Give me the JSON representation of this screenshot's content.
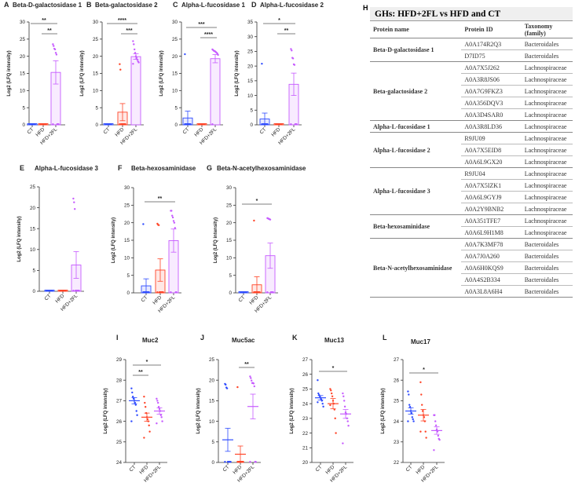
{
  "colors": {
    "CT": "#2f4cff",
    "HFD": "#ff4427",
    "HFD+2FL": "#c65bff"
  },
  "y_axis_label": "Log2 (LFQ intensity)",
  "chart_data": [
    {
      "letter": "A",
      "title": "Beta-D-galactosidase 1",
      "type": "bar",
      "categories": [
        "CT",
        "HFD",
        "HFD+2FL"
      ],
      "ylim": [
        0,
        30
      ],
      "yticks": [
        0,
        5,
        10,
        15,
        20,
        25,
        30
      ],
      "means": [
        0,
        0,
        15.3
      ],
      "sem": [
        0,
        0,
        3.4
      ],
      "points": [
        [
          0,
          0,
          0,
          0,
          0,
          0,
          0,
          0,
          0,
          0
        ],
        [
          0,
          0,
          0,
          0,
          0,
          0,
          0,
          0,
          0,
          0
        ],
        [
          23.5,
          23,
          22.2,
          22,
          21,
          20.5,
          0,
          0,
          0,
          0
        ]
      ],
      "significance": [
        {
          "from": 0,
          "to": 2,
          "label": "**"
        },
        {
          "from": 1,
          "to": 2,
          "label": "**"
        }
      ]
    },
    {
      "letter": "B",
      "title": "Beta-galactosidase 2",
      "type": "bar",
      "categories": [
        "CT",
        "HFD",
        "HFD+2FL"
      ],
      "ylim": [
        0,
        30
      ],
      "yticks": [
        0,
        5,
        10,
        15,
        20,
        25,
        30
      ],
      "means": [
        0,
        3.7,
        19.9
      ],
      "sem": [
        0,
        2.5,
        0.8
      ],
      "points": [
        [
          0,
          0,
          0,
          0,
          0,
          0,
          0,
          0,
          0,
          0
        ],
        [
          17.7,
          16.1,
          0,
          0,
          0,
          0,
          0,
          0,
          0,
          0
        ],
        [
          24.4,
          23.5,
          22,
          21,
          20,
          19.5,
          19,
          18.5,
          18.2,
          17.8
        ]
      ],
      "significance": [
        {
          "from": 0,
          "to": 2,
          "label": "****"
        },
        {
          "from": 1,
          "to": 2,
          "label": "***"
        }
      ]
    },
    {
      "letter": "C",
      "title": "Alpha-L-fucosidase 1",
      "type": "bar",
      "categories": [
        "CT",
        "HFD",
        "HFD+2FL"
      ],
      "ylim": [
        0,
        30
      ],
      "yticks": [
        0,
        5,
        10,
        15,
        20,
        25,
        30
      ],
      "means": [
        2.0,
        0,
        19.3
      ],
      "sem": [
        2.0,
        0,
        1.2
      ],
      "points": [
        [
          20.6,
          0,
          0,
          0,
          0,
          0,
          0,
          0,
          0,
          0
        ],
        [
          0,
          0,
          0,
          0,
          0,
          0,
          0,
          0,
          0,
          0
        ],
        [
          22,
          21.8,
          21.6,
          21.5,
          21.4,
          21.2,
          21,
          20.8,
          20.4,
          0
        ]
      ],
      "significance": [
        {
          "from": 0,
          "to": 2,
          "label": "***"
        },
        {
          "from": 1,
          "to": 2,
          "label": "****"
        }
      ]
    },
    {
      "letter": "D",
      "title": "Alpha-L-fucosidase 2",
      "type": "bar",
      "categories": [
        "CT",
        "HFD",
        "HFD+2FL"
      ],
      "ylim": [
        0,
        35
      ],
      "yticks": [
        0,
        5,
        10,
        15,
        20,
        25,
        30,
        35
      ],
      "means": [
        2.0,
        0,
        13.8
      ],
      "sem": [
        2.0,
        0,
        3.8
      ],
      "points": [
        [
          20.8,
          0,
          0,
          0,
          0,
          0,
          0,
          0,
          0,
          0
        ],
        [
          0,
          0,
          0,
          0,
          0,
          0,
          0,
          0,
          0,
          0
        ],
        [
          25.8,
          25.3,
          22.8,
          22.6,
          20.6,
          20.4,
          0,
          0,
          0,
          0
        ]
      ],
      "significance": [
        {
          "from": 0,
          "to": 2,
          "label": "*"
        },
        {
          "from": 1,
          "to": 2,
          "label": "**"
        }
      ]
    },
    {
      "letter": "E",
      "title": "Alpha-L-fucosidase 3",
      "type": "bar",
      "categories": [
        "CT",
        "HFD",
        "HFD+2FL"
      ],
      "ylim": [
        0,
        25
      ],
      "yticks": [
        0,
        5,
        10,
        15,
        20,
        25
      ],
      "means": [
        0,
        0,
        6.3
      ],
      "sem": [
        0,
        0,
        3.2
      ],
      "points": [
        [
          0,
          0,
          0,
          0,
          0,
          0,
          0,
          0,
          0,
          0
        ],
        [
          0,
          0,
          0,
          0,
          0,
          0,
          0,
          0,
          0,
          0
        ],
        [
          22.2,
          21.3,
          19.7,
          0,
          0,
          0,
          0,
          0,
          0,
          0
        ]
      ],
      "significance": []
    },
    {
      "letter": "F",
      "title": "Beta-hexosaminidase",
      "type": "bar",
      "categories": [
        "CT",
        "HFD",
        "HFD+2FL"
      ],
      "ylim": [
        0,
        30
      ],
      "yticks": [
        0,
        5,
        10,
        15,
        20,
        25,
        30
      ],
      "means": [
        2.0,
        6.5,
        14.9
      ],
      "sem": [
        2.0,
        3.2,
        3.3
      ],
      "points": [
        [
          19.6,
          0,
          0,
          0,
          0,
          0,
          0,
          0,
          0,
          0
        ],
        [
          19.7,
          19.4,
          19.3,
          0,
          0,
          0,
          0,
          0,
          0,
          0
        ],
        [
          23.4,
          23.4,
          22,
          21.5,
          20.5,
          20,
          18.5,
          0,
          0,
          0
        ]
      ],
      "significance": [
        {
          "from": 0,
          "to": 2,
          "label": "**"
        }
      ]
    },
    {
      "letter": "G",
      "title": "Beta-N-acetylhexosaminidase",
      "type": "bar",
      "categories": [
        "CT",
        "HFD",
        "HFD+2FL"
      ],
      "ylim": [
        0,
        30
      ],
      "yticks": [
        0,
        5,
        10,
        15,
        20,
        25,
        30
      ],
      "means": [
        0,
        2.3,
        10.6
      ],
      "sem": [
        0,
        2.3,
        3.6
      ],
      "points": [
        [
          0,
          0,
          0,
          0,
          0,
          0,
          0,
          0,
          0,
          0
        ],
        [
          20.6,
          0,
          0,
          0,
          0,
          0,
          0,
          0,
          0,
          0
        ],
        [
          21.3,
          21.2,
          21.1,
          21.0,
          20.9,
          0,
          0,
          0,
          0,
          0
        ]
      ],
      "significance": [
        {
          "from": 0,
          "to": 2,
          "label": "*"
        }
      ]
    },
    {
      "letter": "I",
      "title": "Muc2",
      "type": "scatter",
      "categories": [
        "CT",
        "HFD",
        "HFD+2FL"
      ],
      "ylim": [
        24,
        29
      ],
      "yticks": [
        24,
        25,
        26,
        27,
        28,
        29
      ],
      "means": [
        27.0,
        26.2,
        26.5
      ],
      "sem": [
        0.15,
        0.2,
        0.15
      ],
      "points": [
        [
          27.6,
          27.4,
          27.2,
          27.1,
          27,
          26.9,
          26.8,
          26.5,
          26.3,
          26
        ],
        [
          27.2,
          26.9,
          26.7,
          26.4,
          26.2,
          26.1,
          26,
          25.8,
          25.5,
          25.2
        ],
        [
          27.1,
          27,
          26.9,
          26.7,
          26.6,
          26.5,
          26.3,
          26.2,
          26,
          25.9
        ]
      ],
      "significance": [
        {
          "from": 0,
          "to": 2,
          "label": "*"
        },
        {
          "from": 0,
          "to": 1,
          "label": "**"
        }
      ]
    },
    {
      "letter": "J",
      "title": "Muc5ac",
      "type": "scatter",
      "categories": [
        "CT",
        "HFD",
        "HFD+2FL"
      ],
      "ylim": [
        0,
        25
      ],
      "yticks": [
        0,
        5,
        10,
        15,
        20,
        25
      ],
      "means": [
        5.5,
        2.0,
        13.6
      ],
      "sem": [
        2.8,
        2.0,
        3.0
      ],
      "points": [
        [
          19.1,
          18.9,
          18.2,
          18,
          0,
          0,
          0,
          0,
          0,
          0
        ],
        [
          18.3,
          0,
          0,
          0,
          0,
          0,
          0,
          0,
          0,
          0
        ],
        [
          20.9,
          20.5,
          19.9,
          19.3,
          19.3,
          19.2,
          18.5,
          0,
          0,
          0
        ]
      ],
      "significance": [
        {
          "from": 1,
          "to": 2,
          "label": "**"
        }
      ]
    },
    {
      "letter": "K",
      "title": "Muc13",
      "type": "scatter",
      "categories": [
        "CT",
        "HFD",
        "HFD+2FL"
      ],
      "ylim": [
        20,
        27
      ],
      "yticks": [
        20,
        21,
        22,
        23,
        24,
        25,
        26,
        27
      ],
      "means": [
        24.4,
        24.0,
        23.3
      ],
      "sem": [
        0.15,
        0.35,
        0.3
      ],
      "points": [
        [
          25.6,
          24.7,
          24.6,
          24.5,
          24.4,
          24.3,
          24.2,
          24.0,
          23.8,
          24.1
        ],
        [
          25.0,
          24.9,
          24.7,
          24.5,
          24.2,
          24.0,
          23.6,
          23.0,
          22.0,
          23.9
        ],
        [
          24.7,
          24.5,
          24.2,
          23.8,
          23.4,
          23.3,
          23.0,
          22.8,
          22.5,
          21.3
        ]
      ],
      "significance": [
        {
          "from": 0,
          "to": 2,
          "label": "*"
        }
      ]
    },
    {
      "letter": "L",
      "title": "Muc17",
      "type": "scatter",
      "categories": [
        "CT",
        "HFD",
        "HFD+2FL"
      ],
      "ylim": [
        22,
        27
      ],
      "yticks": [
        22,
        23,
        24,
        25,
        26,
        27
      ],
      "means": [
        24.5,
        24.3,
        23.55
      ],
      "sem": [
        0.15,
        0.28,
        0.18
      ],
      "points": [
        [
          25.45,
          25.3,
          24.8,
          24.7,
          24.5,
          24.4,
          24.2,
          24.1,
          24.0,
          24.0
        ],
        [
          25.9,
          25.3,
          24.8,
          24.5,
          24.3,
          24.2,
          24.0,
          23.5,
          23.2,
          23.5
        ],
        [
          24.3,
          24.3,
          24.0,
          23.8,
          23.6,
          23.5,
          23.3,
          23.15,
          23.1,
          22.6
        ]
      ],
      "significance": [
        {
          "from": 0,
          "to": 2,
          "label": "*"
        }
      ]
    }
  ],
  "table": {
    "letter": "H",
    "title": "GHs: HFD+2FL vs HFD and CT",
    "headers": [
      "Protein name",
      "Protein ID",
      "Taxonomy (family)"
    ],
    "groups": [
      {
        "name": "Beta-D-galactosidase 1",
        "rows": [
          [
            "A0A174R2Q3",
            "Bacteroidales"
          ],
          [
            "D7ID75",
            "Bacteroidales"
          ]
        ]
      },
      {
        "name": "Beta-galactosidase 2",
        "rows": [
          [
            "A0A7X5J262",
            "Lachnospiraceae"
          ],
          [
            "A0A3R8JS06",
            "Lachnospiraceae"
          ],
          [
            "A0A7G9FKZ3",
            "Lachnospiraceae"
          ],
          [
            "A0A356DQV3",
            "Lachnospiraceae"
          ],
          [
            "A0A3D4SAR0",
            "Lachnospiraceae"
          ]
        ]
      },
      {
        "name": "Alpha-L-fucosidase 1",
        "rows": [
          [
            "A0A3R8LD36",
            "Lachnospiraceae"
          ]
        ]
      },
      {
        "name": "Alpha-L-fucosidase 2",
        "rows": [
          [
            "R9JU09",
            "Lachnospiraceae"
          ],
          [
            "A0A7X5EID8",
            "Lachnospiraceae"
          ],
          [
            "A0A6L9GX20",
            "Lachnospiraceae"
          ]
        ]
      },
      {
        "name": "Alpha-L-fucosidase 3",
        "rows": [
          [
            "R9JU04",
            "Lachnospiraceae"
          ],
          [
            "A0A7X5IZK1",
            "Lachnospiraceae"
          ],
          [
            "A0A6L9GYJ9",
            "Lachnospiraceae"
          ],
          [
            "A0A2Y9BNB2",
            "Lachnospiraceae"
          ]
        ]
      },
      {
        "name": "Beta-hexosaminidase",
        "rows": [
          [
            "A0A351TFE7",
            "Lachnospiraceae"
          ],
          [
            "A0A6L9H1M8",
            "Lachnospiraceae"
          ]
        ]
      },
      {
        "name": "Beta-N-acetylhexosaminidase",
        "rows": [
          [
            "A0A7K3MF78",
            "Bacteroidales"
          ],
          [
            "A0A7J0A260",
            "Bacteroidales"
          ],
          [
            "A0A6H0KQS9",
            "Bacteroidales"
          ],
          [
            "A0A4S2B334",
            "Bacteroidales"
          ],
          [
            "A0A3L8A6H4",
            "Bacteroidales"
          ]
        ]
      }
    ]
  }
}
